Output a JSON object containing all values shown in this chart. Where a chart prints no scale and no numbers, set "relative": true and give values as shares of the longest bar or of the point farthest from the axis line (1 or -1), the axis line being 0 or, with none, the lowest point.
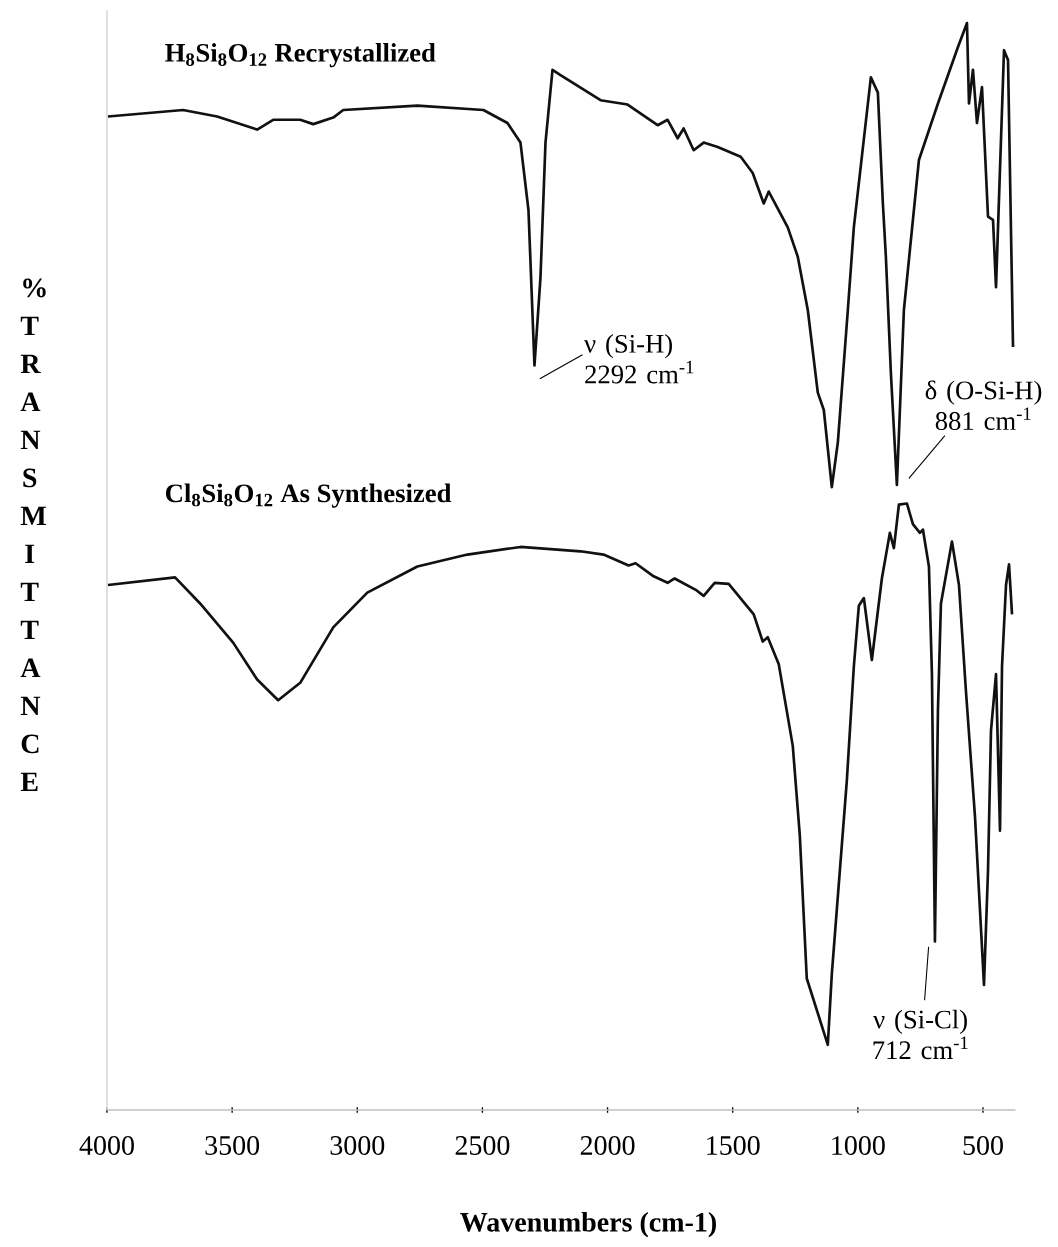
{
  "chart_data": {
    "type": "line",
    "xlabel": "Wavenumbers (cm-1)",
    "ylabel": "% TRANSMITTANCE",
    "relative": true,
    "xlim": [
      4000,
      370
    ],
    "xticks": [
      4000,
      3500,
      3000,
      2500,
      2000,
      1500,
      1000,
      500
    ],
    "tick_labels": "x",
    "marker": "none",
    "series": [
      {
        "name": "**H$_{8}$Si$_{8}$O$_{12}$ Recrystallized**",
        "color": "#111111",
        "x": [
          3996,
          3696,
          3560,
          3400,
          3336,
          3228,
          3176,
          3096,
          3056,
          2760,
          2496,
          2400,
          2348,
          2316,
          2292,
          2268,
          2248,
          2220,
          2188,
          2028,
          1920,
          1800,
          1760,
          1720,
          1696,
          1656,
          1616,
          1560,
          1468,
          1420,
          1376,
          1356,
          1280,
          1240,
          1200,
          1160,
          1136,
          1104,
          1080,
          1040,
          1016,
          948,
          920,
          900,
          888,
          868,
          844,
          816,
          756,
          680,
          600,
          564,
          556,
          540,
          524,
          504,
          480,
          460,
          448,
          416,
          400,
          380
        ],
        "values": [
          0.914,
          0.92,
          0.914,
          0.902,
          0.911,
          0.911,
          0.907,
          0.913,
          0.92,
          0.924,
          0.92,
          0.908,
          0.89,
          0.828,
          0.685,
          0.766,
          0.89,
          0.957,
          0.952,
          0.929,
          0.925,
          0.906,
          0.911,
          0.894,
          0.903,
          0.883,
          0.89,
          0.886,
          0.877,
          0.862,
          0.834,
          0.845,
          0.812,
          0.785,
          0.736,
          0.66,
          0.644,
          0.573,
          0.614,
          0.736,
          0.812,
          0.95,
          0.936,
          0.834,
          0.785,
          0.678,
          0.575,
          0.736,
          0.874,
          0.926,
          0.978,
          1.0,
          0.926,
          0.957,
          0.908,
          0.941,
          0.822,
          0.819,
          0.757,
          0.975,
          0.966,
          0.702
        ]
      },
      {
        "name": "**Cl$_{8}$Si$_{8}$O$_{12}$ As Synthesized**",
        "color": "#111111",
        "x": [
          3996,
          3728,
          3628,
          3496,
          3400,
          3316,
          3228,
          3096,
          2960,
          2760,
          2560,
          2348,
          2108,
          2016,
          1916,
          1888,
          1816,
          1760,
          1732,
          1644,
          1616,
          1572,
          1516,
          1416,
          1380,
          1360,
          1316,
          1260,
          1232,
          1204,
          1120,
          1104,
          1044,
          1016,
          996,
          976,
          944,
          904,
          872,
          856,
          836,
          804,
          780,
          752,
          740,
          716,
          704,
          692,
          680,
          668,
          624,
          596,
          568,
          532,
          496,
          480,
          468,
          448,
          432,
          424,
          408,
          396,
          384
        ],
        "values": [
          0.483,
          0.49,
          0.466,
          0.43,
          0.396,
          0.377,
          0.393,
          0.444,
          0.476,
          0.5,
          0.511,
          0.518,
          0.514,
          0.511,
          0.501,
          0.503,
          0.491,
          0.485,
          0.489,
          0.478,
          0.473,
          0.485,
          0.484,
          0.456,
          0.431,
          0.435,
          0.41,
          0.335,
          0.253,
          0.121,
          0.06,
          0.125,
          0.303,
          0.408,
          0.464,
          0.471,
          0.414,
          0.489,
          0.531,
          0.517,
          0.557,
          0.558,
          0.539,
          0.531,
          0.534,
          0.5,
          0.401,
          0.155,
          0.368,
          0.466,
          0.523,
          0.483,
          0.385,
          0.27,
          0.115,
          0.22,
          0.349,
          0.401,
          0.257,
          0.408,
          0.483,
          0.502,
          0.456
        ]
      }
    ],
    "annotations": [
      {
        "text": "ν (Si-H) 2292 cm$^{-1}$",
        "x": 2292,
        "y": 0.685
      },
      {
        "text": "δ (O-Si-H) 881 cm$^{-1}$",
        "x": 844,
        "y": 0.575
      },
      {
        "text": "ν (Si-Cl) 712 cm$^{-1}$",
        "x": 712,
        "y": 0.155
      }
    ]
  }
}
